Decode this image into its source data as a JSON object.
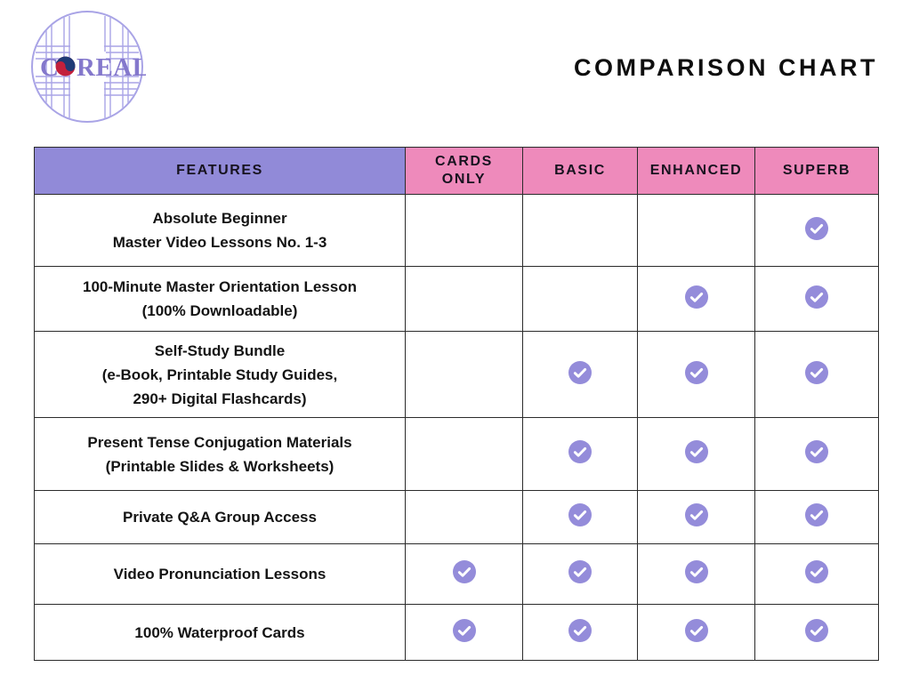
{
  "logo": {
    "name": "COREALL",
    "text_before_mark": "C",
    "text_after_mark": "REALL",
    "circle_color": "#a9a4e6",
    "text_color": "#8478cc",
    "taegeuk_blue": "#1f3a75",
    "taegeuk_red": "#c2203c"
  },
  "header": {
    "title": "COMPARISON CHART"
  },
  "table": {
    "border_color": "#2b2b2b",
    "check_color": "#948cda",
    "columns": [
      {
        "label": "FEATURES",
        "bg": "#918ad8"
      },
      {
        "label": "CARDS\nONLY",
        "bg": "#ee8abb"
      },
      {
        "label": "BASIC",
        "bg": "#ee8abb"
      },
      {
        "label": "ENHANCED",
        "bg": "#ee8abb"
      },
      {
        "label": "SUPERB",
        "bg": "#ee8abb"
      }
    ],
    "rows": [
      {
        "feature_lines": [
          "Absolute Beginner",
          "Master Video Lessons No. 1-3"
        ],
        "checks": [
          false,
          false,
          false,
          true
        ]
      },
      {
        "feature_lines": [
          "100-Minute Master Orientation Lesson",
          "(100% Downloadable)"
        ],
        "checks": [
          false,
          false,
          true,
          true
        ]
      },
      {
        "feature_lines": [
          "Self-Study Bundle",
          "(e-Book, Printable Study Guides,",
          "290+ Digital Flashcards)"
        ],
        "checks": [
          false,
          true,
          true,
          true
        ]
      },
      {
        "feature_lines": [
          "Present Tense Conjugation Materials",
          "(Printable Slides & Worksheets)"
        ],
        "checks": [
          false,
          true,
          true,
          true
        ]
      },
      {
        "feature_lines": [
          "Private Q&A Group Access"
        ],
        "checks": [
          false,
          true,
          true,
          true
        ]
      },
      {
        "feature_lines": [
          "Video Pronunciation Lessons"
        ],
        "checks": [
          true,
          true,
          true,
          true
        ]
      },
      {
        "feature_lines": [
          "100% Waterproof Cards"
        ],
        "checks": [
          true,
          true,
          true,
          true
        ]
      }
    ]
  },
  "chart_data": {
    "type": "table",
    "title": "COMPARISON CHART",
    "columns": [
      "FEATURES",
      "CARDS ONLY",
      "BASIC",
      "ENHANCED",
      "SUPERB"
    ],
    "rows": [
      {
        "feature": "Absolute Beginner Master Video Lessons No. 1-3",
        "cards_only": false,
        "basic": false,
        "enhanced": false,
        "superb": true
      },
      {
        "feature": "100-Minute Master Orientation Lesson (100% Downloadable)",
        "cards_only": false,
        "basic": false,
        "enhanced": true,
        "superb": true
      },
      {
        "feature": "Self-Study Bundle (e-Book, Printable Study Guides, 290+ Digital Flashcards)",
        "cards_only": false,
        "basic": true,
        "enhanced": true,
        "superb": true
      },
      {
        "feature": "Present Tense Conjugation Materials (Printable Slides & Worksheets)",
        "cards_only": false,
        "basic": true,
        "enhanced": true,
        "superb": true
      },
      {
        "feature": "Private Q&A Group Access",
        "cards_only": false,
        "basic": true,
        "enhanced": true,
        "superb": true
      },
      {
        "feature": "Video Pronunciation Lessons",
        "cards_only": true,
        "basic": true,
        "enhanced": true,
        "superb": true
      },
      {
        "feature": "100% Waterproof Cards",
        "cards_only": true,
        "basic": true,
        "enhanced": true,
        "superb": true
      }
    ]
  }
}
